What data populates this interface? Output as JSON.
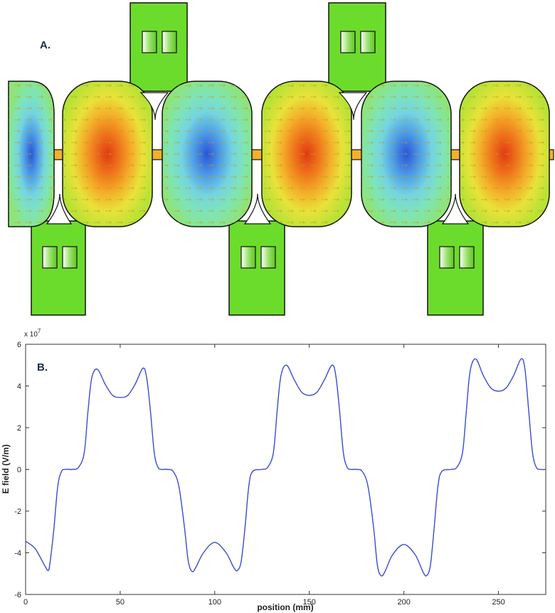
{
  "figure": {
    "panel_a_label": "A.",
    "panel_b_label": "B."
  },
  "colors": {
    "ring_green": "#6cdc2c",
    "cell_yellow": "#e2e23e",
    "cell_cyan": "#78e0c8",
    "positive_red": "#e83a12",
    "negative_blue": "#2a55d8",
    "arrow": "#b5a020",
    "curve": "#3b4bd0"
  },
  "chart_data": {
    "type": "line",
    "xlabel": "position (mm)",
    "ylabel": "E field (V/m)",
    "y_multiplier": "x 10^7",
    "xlim": [
      0,
      275
    ],
    "ylim": [
      -6,
      6
    ],
    "xticks": [
      0,
      50,
      100,
      150,
      200,
      250
    ],
    "yticks": [
      -6,
      -4,
      -2,
      0,
      2,
      4,
      6
    ],
    "grid": false,
    "series": [
      {
        "x": [
          0,
          5,
          10,
          12,
          13,
          15,
          17,
          19,
          21,
          25,
          28,
          31,
          33,
          35,
          38,
          42,
          46,
          50,
          54,
          58,
          62,
          64,
          66,
          68,
          70,
          72,
          75,
          78,
          81,
          84,
          86,
          88,
          90,
          94,
          100,
          106,
          110,
          112,
          114,
          116,
          118,
          120,
          125,
          128,
          131,
          133,
          135,
          138,
          142,
          146,
          150,
          154,
          158,
          162,
          164,
          166,
          168,
          170,
          172,
          175,
          178,
          181,
          184,
          186,
          188,
          190,
          194,
          200,
          206,
          210,
          212,
          214,
          216,
          218,
          220,
          225,
          228,
          231,
          233,
          235,
          238,
          242,
          246,
          250,
          254,
          258,
          262,
          264,
          266,
          268,
          270,
          272,
          275
        ],
        "y": [
          -3.45,
          -3.8,
          -4.6,
          -4.85,
          -4.4,
          -2.8,
          -0.8,
          -0.1,
          0.0,
          0.0,
          0.1,
          0.8,
          2.8,
          4.4,
          4.8,
          4.1,
          3.55,
          3.45,
          3.55,
          4.1,
          4.85,
          4.4,
          2.8,
          0.8,
          0.1,
          0.0,
          0.0,
          -0.1,
          -0.8,
          -2.8,
          -4.4,
          -4.9,
          -4.7,
          -4.0,
          -3.5,
          -4.0,
          -4.7,
          -4.85,
          -4.4,
          -2.8,
          -0.8,
          -0.1,
          0.0,
          0.1,
          0.8,
          2.8,
          4.5,
          5.0,
          4.3,
          3.7,
          3.55,
          3.7,
          4.3,
          5.0,
          4.5,
          2.8,
          0.8,
          0.1,
          0.0,
          0.0,
          -0.1,
          -0.8,
          -2.8,
          -4.6,
          -5.1,
          -4.9,
          -4.1,
          -3.6,
          -4.1,
          -4.9,
          -5.1,
          -4.6,
          -2.8,
          -0.8,
          -0.1,
          0.0,
          0.1,
          0.8,
          2.8,
          4.7,
          5.3,
          4.5,
          3.9,
          3.75,
          3.9,
          4.5,
          5.3,
          4.8,
          2.8,
          0.8,
          0.1,
          0.0,
          0.0
        ]
      }
    ]
  }
}
